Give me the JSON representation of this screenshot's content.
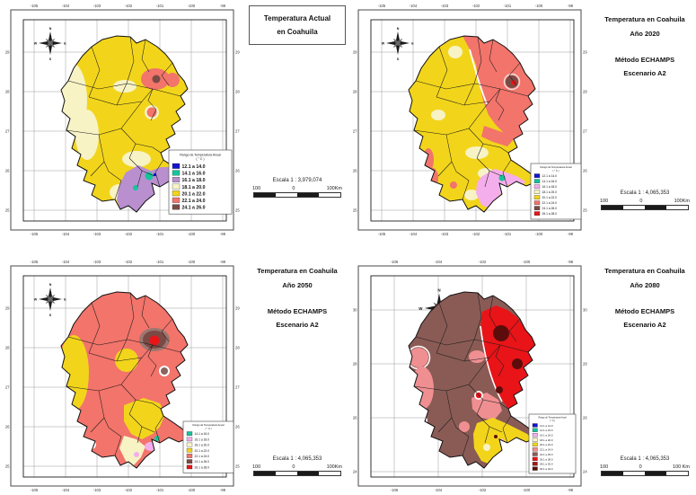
{
  "compass": {
    "north": "N",
    "south": "S",
    "east": "E",
    "west": "W"
  },
  "legend_title": "Rango de Temperatura Anual",
  "legend_units": "( ° C )",
  "maps": [
    {
      "id": "actual",
      "title_lines": [
        "Temperatura Actual",
        "en Coahuila",
        "",
        ""
      ],
      "escala": "Escala 1 : 3,979,074",
      "scalebar": {
        "left": "100",
        "center": "0",
        "right": "100Km"
      },
      "x_ticks": [
        "-105",
        "-104",
        "-103",
        "-102",
        "-101",
        "-100",
        "-99"
      ],
      "y_ticks": [
        "29",
        "28",
        "27",
        "26",
        "25"
      ],
      "legend": [
        {
          "label": "12.1 a 14.0",
          "color": "#1414CC"
        },
        {
          "label": "14.1 a 16.0",
          "color": "#17C39A"
        },
        {
          "label": "16.1 a 18.0",
          "color": "#B98FD0"
        },
        {
          "label": "18.1 a 20.0",
          "color": "#F7F3C5"
        },
        {
          "label": "20.1 a 22.0",
          "color": "#F2D51B"
        },
        {
          "label": "22.1 a 24.0",
          "color": "#F2746B"
        },
        {
          "label": "24.1 a 26.0",
          "color": "#7B4A45"
        }
      ]
    },
    {
      "id": "2020",
      "title_lines": [
        "Temperatura en Coahuila",
        "Año 2020",
        "Método ECHAMPS",
        "Escenario A2"
      ],
      "escala": "Escala 1 : 4,065,353",
      "scalebar": {
        "left": "100",
        "center": "0",
        "right": "100Km"
      },
      "x_ticks": [
        "-105",
        "-104",
        "-103",
        "-102",
        "-101",
        "-100",
        "-99"
      ],
      "y_ticks": [
        "29",
        "28",
        "27",
        "26",
        "25"
      ],
      "legend": [
        {
          "label": "12.1 a 14.0",
          "color": "#1414CC"
        },
        {
          "label": "14.1 a 16.0",
          "color": "#17C39A"
        },
        {
          "label": "16.1 a 18.0",
          "color": "#F4AEEC"
        },
        {
          "label": "18.1 a 20.0",
          "color": "#F7F3C5"
        },
        {
          "label": "20.1 a 22.0",
          "color": "#F2D51B"
        },
        {
          "label": "22.1 a 24.0",
          "color": "#F2746B"
        },
        {
          "label": "24.1 a 26.0",
          "color": "#7B4A45"
        },
        {
          "label": "26.1 a 28.0",
          "color": "#E81418"
        }
      ]
    },
    {
      "id": "2050",
      "title_lines": [
        "Temperatura en Coahuila",
        "Año 2050",
        "Método ECHAMPS",
        "Escenario A2"
      ],
      "escala": "Escala 1 : 4,065,353",
      "scalebar": {
        "left": "100",
        "center": "0",
        "right": "100Km"
      },
      "x_ticks": [
        "-105",
        "-104",
        "-103",
        "-102",
        "-101",
        "-100",
        "-99"
      ],
      "y_ticks": [
        "29",
        "28",
        "27",
        "26",
        "25"
      ],
      "legend": [
        {
          "label": "14.1 a 16.0",
          "color": "#17C39A"
        },
        {
          "label": "16.1 a 18.0",
          "color": "#F4AEEC"
        },
        {
          "label": "18.1 a 20.0",
          "color": "#F7F3C5"
        },
        {
          "label": "20.1 a 22.0",
          "color": "#F2D51B"
        },
        {
          "label": "22.1 a 24.0",
          "color": "#F2746B"
        },
        {
          "label": "24.1 a 26.0",
          "color": "#7B4A45"
        },
        {
          "label": "26.1 a 28.0",
          "color": "#E81418"
        }
      ]
    },
    {
      "id": "2080",
      "title_lines": [
        "Temperatura en Coahuila",
        "Año 2080",
        "Método ECHAMPS",
        "Escenario A2"
      ],
      "escala": "Escala 1 : 4,065,353",
      "scalebar": {
        "left": "100",
        "center": "0",
        "right": "100 Km"
      },
      "x_ticks": [
        "-106",
        "-104",
        "-102",
        "-100",
        "-98"
      ],
      "y_ticks": [
        "30",
        "28",
        "26",
        "24"
      ],
      "legend": [
        {
          "label": "12.1 a 14.0",
          "color": "#1414CC"
        },
        {
          "label": "14.1 a 16.0",
          "color": "#17C39A"
        },
        {
          "label": "16.1 a 18.0",
          "color": "#F4AEEC"
        },
        {
          "label": "18.1 a 20.0",
          "color": "#F7F3C5"
        },
        {
          "label": "20.1 a 22.0",
          "color": "#F2D51B"
        },
        {
          "label": "22.1 a 24.0",
          "color": "#EF8F92"
        },
        {
          "label": "24.1 a 26.0",
          "color": "#8A5B55"
        },
        {
          "label": "26.1 a 28.0",
          "color": "#E81418"
        },
        {
          "label": "28.1 a 30.0",
          "color": "#9E1B14"
        },
        {
          "label": "30.1 a 32.0",
          "color": "#5C0D0B"
        }
      ]
    }
  ]
}
